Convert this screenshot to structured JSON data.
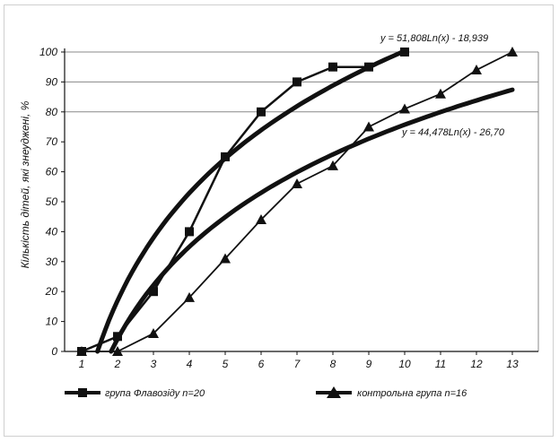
{
  "chart_data": {
    "type": "line",
    "title": "",
    "xlabel": "",
    "ylabel": "Кількість дітей, які знеуджені, %",
    "x": [
      1,
      2,
      3,
      4,
      5,
      6,
      7,
      8,
      9,
      10,
      11,
      12,
      13
    ],
    "xlim": [
      1,
      13
    ],
    "ylim": [
      0,
      100
    ],
    "yticks": [
      0,
      10,
      20,
      30,
      40,
      50,
      60,
      70,
      80,
      90,
      100
    ],
    "gridlines_y": [
      80,
      90,
      100
    ],
    "series": [
      {
        "name": "група Флавозіду n=20",
        "marker": "square",
        "x": [
          1,
          2,
          3,
          4,
          5,
          6,
          7,
          8,
          9,
          10
        ],
        "values": [
          0,
          5,
          20,
          40,
          65,
          80,
          90,
          95,
          95,
          100
        ]
      },
      {
        "name": "контрольна група n=16",
        "marker": "triangle",
        "x": [
          1,
          2,
          3,
          4,
          5,
          6,
          7,
          8,
          9,
          10,
          11,
          12,
          13
        ],
        "values": [
          0,
          0,
          6,
          18,
          31,
          44,
          56,
          62,
          75,
          81,
          86,
          94,
          100
        ]
      }
    ],
    "trendlines": [
      {
        "series": "група Флавозіду n=20",
        "type": "log",
        "a": 51.808,
        "b": -18.939,
        "x_range": [
          1.44,
          10
        ],
        "equation": "y = 51,808Ln(x) - 18,939"
      },
      {
        "series": "контрольна група n=16",
        "type": "log",
        "a": 44.478,
        "b": -26.7,
        "x_range": [
          1.82,
          13
        ],
        "equation": "y = 44,478Ln(x) - 26,70"
      }
    ],
    "legend_position": "bottom"
  }
}
